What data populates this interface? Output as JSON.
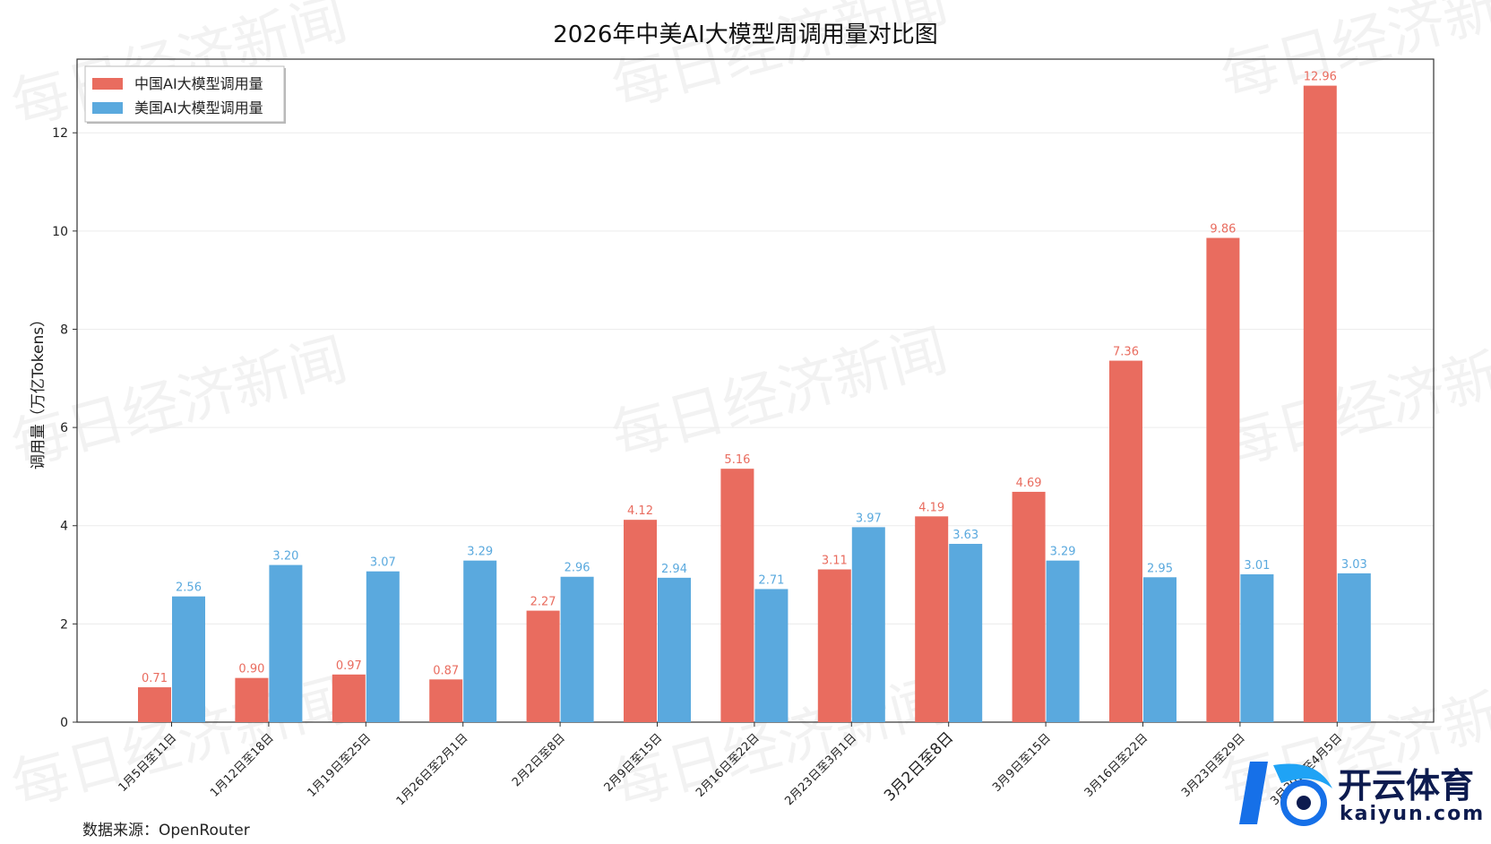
{
  "chart_data": {
    "type": "bar",
    "title": "2026年中美AI大模型周调用量对比图",
    "ylabel": "调用量（万亿Tokens）",
    "xlabel": "",
    "ylim": [
      0,
      13.5
    ],
    "yticks": [
      0,
      2,
      4,
      6,
      8,
      10,
      12
    ],
    "grid": true,
    "legend_position": "top-left",
    "categories": [
      "1月5日至11日",
      "1月12日至18日",
      "1月19日至25日",
      "1月26日至2月1日",
      "2月2日至8日",
      "2月9日至15日",
      "2月16日至22日",
      "2月23日至3月1日",
      "3月2日至8日",
      "3月9日至15日",
      "3月16日至22日",
      "3月23日至29日",
      "3月30日至4月5日"
    ],
    "series": [
      {
        "name": "中国AI大模型调用量",
        "color": "#e96c5f",
        "values": [
          0.71,
          0.9,
          0.97,
          0.87,
          2.27,
          4.12,
          5.16,
          3.11,
          4.19,
          4.69,
          7.36,
          9.86,
          12.96
        ],
        "labels": [
          "0.71",
          "0.90",
          "0.97",
          "0.87",
          "2.27",
          "4.12",
          "5.16",
          "3.11",
          "4.19",
          "4.69",
          "7.36",
          "9.86",
          "12.96"
        ]
      },
      {
        "name": "美国AI大模型调用量",
        "color": "#5aa9de",
        "values": [
          2.56,
          3.2,
          3.07,
          3.29,
          2.96,
          2.94,
          2.71,
          3.97,
          3.63,
          3.29,
          2.95,
          3.01,
          3.03
        ],
        "labels": [
          "2.56",
          "3.20",
          "3.07",
          "3.29",
          "2.96",
          "2.94",
          "2.71",
          "3.97",
          "3.63",
          "3.29",
          "2.95",
          "3.01",
          "3.03"
        ]
      }
    ]
  },
  "footer": {
    "source": "数据来源：OpenRouter"
  },
  "watermark": {
    "text": "每日经济新闻"
  },
  "brand": {
    "cn": "开云体育",
    "en": "kaiyun.com"
  }
}
